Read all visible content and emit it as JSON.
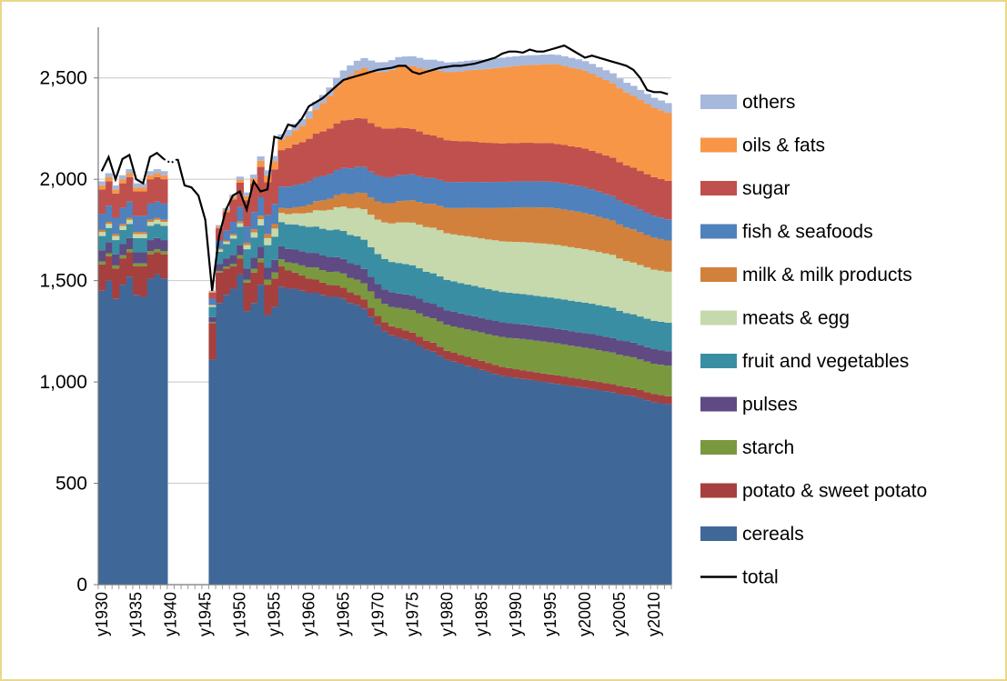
{
  "chart_data": {
    "type": "area",
    "stacked": true,
    "title": "",
    "xlabel": "",
    "ylabel": "",
    "ylim": [
      0,
      2750
    ],
    "y_ticks": [
      0,
      500,
      1000,
      1500,
      2000,
      2500
    ],
    "y_tick_labels": [
      "0",
      "500",
      "1,000",
      "1,500",
      "2,000",
      "2,500"
    ],
    "x_range": [
      1930,
      2013
    ],
    "x_ticks": [
      1930,
      1935,
      1940,
      1945,
      1950,
      1955,
      1960,
      1965,
      1970,
      1975,
      1980,
      1985,
      1990,
      1995,
      2000,
      2005,
      2010
    ],
    "x_tick_labels": [
      "y1930",
      "y1935",
      "y1940",
      "y1945",
      "y1950",
      "y1955",
      "y1960",
      "y1965",
      "y1970",
      "y1975",
      "y1980",
      "y1985",
      "y1990",
      "y1995",
      "y2000",
      "y2005",
      "y2010"
    ],
    "grid": "horizontal",
    "legend_position": "right",
    "x": [
      1930,
      1931,
      1932,
      1933,
      1934,
      1935,
      1936,
      1937,
      1938,
      1939,
      1940,
      1941,
      1942,
      1943,
      1944,
      1945,
      1946,
      1947,
      1948,
      1949,
      1950,
      1951,
      1952,
      1953,
      1954,
      1955,
      1956,
      1957,
      1958,
      1959,
      1960,
      1961,
      1962,
      1963,
      1964,
      1965,
      1966,
      1967,
      1968,
      1969,
      1970,
      1971,
      1972,
      1973,
      1974,
      1975,
      1976,
      1977,
      1978,
      1979,
      1980,
      1981,
      1982,
      1983,
      1984,
      1985,
      1986,
      1987,
      1988,
      1989,
      1990,
      1991,
      1992,
      1993,
      1994,
      1995,
      1996,
      1997,
      1998,
      1999,
      2000,
      2001,
      2002,
      2003,
      2004,
      2005,
      2006,
      2007,
      2008,
      2009,
      2010,
      2011,
      2012
    ],
    "series": [
      {
        "name": "cereals",
        "color": "#3f6899",
        "values": [
          1450,
          1500,
          1410,
          1480,
          1520,
          1430,
          1420,
          1510,
          1530,
          1510,
          null,
          null,
          null,
          null,
          null,
          null,
          1110,
          1390,
          1430,
          1460,
          1530,
          1350,
          1390,
          1480,
          1330,
          1370,
          1470,
          1460,
          1460,
          1450,
          1440,
          1440,
          1430,
          1420,
          1420,
          1410,
          1390,
          1380,
          1360,
          1320,
          1280,
          1250,
          1230,
          1220,
          1210,
          1200,
          1180,
          1160,
          1150,
          1130,
          1110,
          1100,
          1090,
          1080,
          1070,
          1060,
          1050,
          1040,
          1030,
          1025,
          1020,
          1015,
          1010,
          1005,
          1000,
          995,
          990,
          985,
          980,
          975,
          970,
          965,
          960,
          955,
          950,
          940,
          935,
          930,
          920,
          910,
          900,
          895,
          890
        ]
      },
      {
        "name": "potato & sweet potato",
        "color": "#a6403f",
        "values": [
          130,
          120,
          150,
          130,
          120,
          140,
          150,
          120,
          110,
          120,
          null,
          null,
          null,
          null,
          null,
          null,
          180,
          150,
          130,
          110,
          80,
          140,
          150,
          110,
          150,
          140,
          100,
          90,
          80,
          75,
          70,
          65,
          60,
          58,
          56,
          55,
          52,
          50,
          48,
          47,
          46,
          45,
          45,
          45,
          45,
          44,
          44,
          44,
          44,
          44,
          44,
          44,
          44,
          44,
          44,
          44,
          44,
          44,
          44,
          43,
          43,
          43,
          43,
          42,
          42,
          42,
          42,
          42,
          41,
          41,
          41,
          41,
          40,
          40,
          40,
          40,
          40,
          40,
          40,
          40,
          40,
          40,
          40
        ]
      },
      {
        "name": "starch",
        "color": "#7a993f",
        "values": [
          15,
          15,
          15,
          15,
          15,
          15,
          15,
          15,
          15,
          15,
          null,
          null,
          null,
          null,
          null,
          null,
          5,
          8,
          10,
          12,
          15,
          15,
          18,
          20,
          25,
          30,
          35,
          40,
          45,
          50,
          55,
          60,
          62,
          65,
          68,
          70,
          72,
          75,
          78,
          80,
          85,
          90,
          95,
          100,
          105,
          110,
          115,
          118,
          120,
          125,
          128,
          130,
          132,
          135,
          138,
          140,
          142,
          145,
          148,
          150,
          152,
          154,
          155,
          156,
          157,
          158,
          158,
          158,
          158,
          158,
          158,
          158,
          157,
          156,
          155,
          154,
          153,
          152,
          151,
          150,
          150,
          150,
          150
        ]
      },
      {
        "name": "pulses",
        "color": "#5f4a84",
        "values": [
          55,
          55,
          55,
          55,
          55,
          55,
          55,
          55,
          55,
          55,
          null,
          null,
          null,
          null,
          null,
          null,
          25,
          35,
          40,
          45,
          50,
          55,
          55,
          58,
          60,
          62,
          64,
          66,
          68,
          70,
          72,
          72,
          72,
          72,
          72,
          72,
          72,
          72,
          72,
          72,
          72,
          72,
          72,
          72,
          72,
          72,
          72,
          72,
          72,
          72,
          72,
          72,
          72,
          72,
          72,
          72,
          72,
          72,
          72,
          72,
          72,
          72,
          72,
          72,
          72,
          72,
          72,
          72,
          72,
          72,
          72,
          72,
          72,
          72,
          72,
          72,
          72,
          72,
          72,
          72,
          72,
          72,
          72
        ]
      },
      {
        "name": "fruit and vegetables",
        "color": "#3a8ea3",
        "values": [
          70,
          70,
          70,
          70,
          70,
          70,
          70,
          70,
          70,
          70,
          null,
          null,
          null,
          null,
          null,
          null,
          50,
          60,
          70,
          80,
          90,
          95,
          100,
          105,
          110,
          115,
          120,
          122,
          124,
          126,
          128,
          130,
          132,
          134,
          136,
          138,
          140,
          142,
          144,
          146,
          148,
          150,
          150,
          150,
          150,
          150,
          150,
          150,
          150,
          150,
          150,
          150,
          150,
          150,
          150,
          150,
          150,
          150,
          150,
          150,
          150,
          150,
          150,
          150,
          150,
          150,
          150,
          150,
          150,
          150,
          150,
          150,
          150,
          150,
          150,
          145,
          140,
          140,
          140,
          140,
          140,
          140,
          140
        ]
      },
      {
        "name": "meats & egg",
        "color": "#c5d9ad",
        "values": [
          20,
          20,
          20,
          20,
          20,
          20,
          20,
          20,
          20,
          20,
          null,
          null,
          null,
          null,
          null,
          null,
          8,
          10,
          12,
          15,
          18,
          20,
          25,
          30,
          35,
          40,
          45,
          50,
          55,
          60,
          70,
          80,
          90,
          100,
          110,
          120,
          130,
          140,
          150,
          160,
          170,
          180,
          190,
          200,
          205,
          210,
          215,
          220,
          225,
          228,
          230,
          232,
          235,
          238,
          240,
          242,
          245,
          248,
          250,
          252,
          254,
          256,
          258,
          260,
          262,
          263,
          264,
          264,
          264,
          264,
          264,
          263,
          262,
          261,
          260,
          258,
          256,
          255,
          254,
          253,
          252,
          252,
          252
        ]
      },
      {
        "name": "milk & milk products",
        "color": "#d2813c",
        "values": [
          10,
          10,
          10,
          10,
          10,
          10,
          10,
          10,
          10,
          10,
          null,
          null,
          null,
          null,
          null,
          null,
          3,
          5,
          6,
          8,
          10,
          12,
          15,
          18,
          20,
          22,
          25,
          28,
          30,
          35,
          40,
          45,
          50,
          55,
          60,
          65,
          70,
          75,
          80,
          85,
          90,
          95,
          100,
          105,
          108,
          110,
          112,
          115,
          118,
          120,
          125,
          130,
          135,
          140,
          145,
          150,
          155,
          160,
          165,
          168,
          170,
          172,
          174,
          176,
          178,
          180,
          180,
          180,
          180,
          180,
          178,
          176,
          174,
          172,
          170,
          168,
          166,
          164,
          162,
          160,
          158,
          156,
          154
        ]
      },
      {
        "name": "fish & seafoods",
        "color": "#4f81bd",
        "values": [
          80,
          80,
          80,
          80,
          80,
          80,
          80,
          80,
          80,
          80,
          null,
          null,
          null,
          null,
          null,
          null,
          30,
          40,
          50,
          60,
          70,
          80,
          85,
          90,
          95,
          100,
          105,
          108,
          110,
          112,
          115,
          118,
          120,
          122,
          124,
          126,
          128,
          128,
          128,
          128,
          128,
          128,
          128,
          128,
          128,
          128,
          128,
          128,
          128,
          128,
          128,
          128,
          128,
          128,
          128,
          128,
          128,
          128,
          128,
          128,
          128,
          128,
          128,
          128,
          128,
          128,
          128,
          128,
          128,
          128,
          128,
          126,
          124,
          122,
          120,
          118,
          116,
          114,
          112,
          110,
          108,
          106,
          104
        ]
      },
      {
        "name": "sugar",
        "color": "#c0504d",
        "values": [
          120,
          120,
          120,
          120,
          120,
          120,
          120,
          120,
          120,
          120,
          null,
          null,
          null,
          null,
          null,
          null,
          30,
          60,
          90,
          110,
          120,
          130,
          140,
          150,
          160,
          170,
          180,
          190,
          200,
          205,
          210,
          215,
          220,
          225,
          230,
          235,
          240,
          240,
          240,
          240,
          240,
          240,
          240,
          235,
          230,
          225,
          220,
          215,
          210,
          208,
          206,
          204,
          202,
          200,
          198,
          196,
          194,
          192,
          190,
          190,
          190,
          190,
          190,
          190,
          190,
          190,
          190,
          190,
          190,
          190,
          190,
          190,
          190,
          190,
          190,
          190,
          190,
          190,
          190,
          190,
          190,
          190,
          190
        ]
      },
      {
        "name": "oils & fats",
        "color": "#f79646",
        "values": [
          20,
          20,
          20,
          20,
          20,
          20,
          20,
          20,
          20,
          20,
          null,
          null,
          null,
          null,
          null,
          null,
          5,
          8,
          10,
          12,
          15,
          20,
          25,
          30,
          35,
          40,
          50,
          60,
          70,
          80,
          100,
          120,
          140,
          160,
          180,
          200,
          220,
          235,
          250,
          260,
          270,
          280,
          290,
          300,
          305,
          310,
          315,
          320,
          325,
          330,
          335,
          340,
          345,
          350,
          355,
          360,
          365,
          370,
          375,
          378,
          380,
          382,
          384,
          386,
          388,
          390,
          392,
          390,
          388,
          386,
          384,
          380,
          376,
          372,
          368,
          364,
          360,
          356,
          352,
          348,
          344,
          340,
          336
        ]
      },
      {
        "name": "others",
        "color": "#a6b8dc",
        "values": [
          20,
          20,
          20,
          20,
          20,
          20,
          20,
          20,
          20,
          20,
          null,
          null,
          null,
          null,
          null,
          null,
          5,
          8,
          10,
          12,
          15,
          18,
          20,
          22,
          24,
          26,
          28,
          30,
          32,
          34,
          36,
          38,
          40,
          42,
          44,
          46,
          48,
          48,
          48,
          48,
          48,
          48,
          48,
          48,
          48,
          48,
          48,
          48,
          48,
          48,
          48,
          48,
          48,
          48,
          48,
          48,
          48,
          48,
          48,
          48,
          48,
          48,
          48,
          48,
          48,
          48,
          48,
          48,
          48,
          48,
          48,
          48,
          48,
          48,
          48,
          48,
          48,
          48,
          48,
          48,
          48,
          48,
          48
        ]
      }
    ],
    "total_series": {
      "name": "total",
      "color": "#000000",
      "values": [
        2040,
        2110,
        2000,
        2100,
        2120,
        2000,
        1980,
        2110,
        2130,
        2100,
        2080,
        2100,
        1970,
        1960,
        1920,
        1800,
        1450,
        1720,
        1850,
        1920,
        1940,
        1850,
        1990,
        1940,
        1950,
        2210,
        2200,
        2270,
        2260,
        2300,
        2360,
        2380,
        2400,
        2430,
        2460,
        2490,
        2500,
        2510,
        2520,
        2530,
        2540,
        2545,
        2550,
        2560,
        2560,
        2530,
        2520,
        2530,
        2540,
        2550,
        2555,
        2560,
        2560,
        2565,
        2570,
        2580,
        2590,
        2600,
        2620,
        2630,
        2630,
        2625,
        2640,
        2630,
        2630,
        2640,
        2650,
        2660,
        2640,
        2620,
        2600,
        2610,
        2600,
        2590,
        2580,
        2570,
        2560,
        2540,
        2500,
        2440,
        2430,
        2430,
        2420
      ]
    },
    "legend": [
      "others",
      "oils & fats",
      "sugar",
      "fish & seafoods",
      "milk & milk products",
      "meats & egg",
      "fruit and vegetables",
      "pulses",
      "starch",
      "potato & sweet potato",
      "cereals",
      "total"
    ]
  }
}
